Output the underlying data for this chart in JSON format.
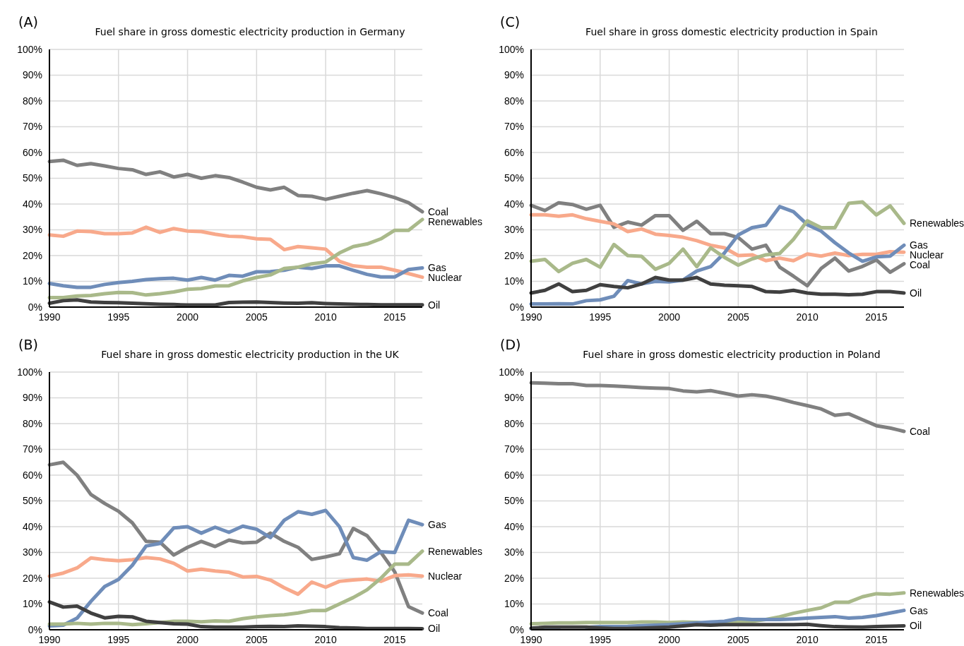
{
  "chart_data": [
    {
      "type": "line",
      "title": "Fuel share in gross domestic electricity production in Germany",
      "annotations": [
        "(A)"
      ],
      "x": [
        1990,
        1991,
        1992,
        1993,
        1994,
        1995,
        1996,
        1997,
        1998,
        1999,
        2000,
        2001,
        2002,
        2003,
        2004,
        2005,
        2006,
        2007,
        2008,
        2009,
        2010,
        2011,
        2012,
        2013,
        2014,
        2015,
        2016,
        2017
      ],
      "xlim": [
        1990,
        2017
      ],
      "xticks": [
        1990,
        1995,
        2000,
        2005,
        2010,
        2015
      ],
      "ylim": [
        0,
        100
      ],
      "yticks": [
        {
          "value": 0,
          "label": "0%"
        },
        {
          "value": 10,
          "label": "10%"
        },
        {
          "value": 20,
          "label": "20%"
        },
        {
          "value": 30,
          "label": "30%"
        },
        {
          "value": 40,
          "label": "40%"
        },
        {
          "value": 50,
          "label": "50%"
        },
        {
          "value": 60,
          "label": "60%"
        },
        {
          "value": 70,
          "label": "70%"
        },
        {
          "value": 80,
          "label": "80%"
        },
        {
          "value": 90,
          "label": "90%"
        },
        {
          "value": 100,
          "label": "100%"
        }
      ],
      "grid": true,
      "series": [
        {
          "name": "Coal",
          "color": "#808080",
          "values": [
            56.5,
            57,
            55,
            55.7,
            54.8,
            53.8,
            53.3,
            51.5,
            52.5,
            50.5,
            51.5,
            50,
            51,
            50.3,
            48.5,
            46.5,
            45.5,
            46.5,
            43.3,
            43,
            41.8,
            43,
            44.2,
            45.2,
            44,
            42.5,
            40.5,
            37
          ]
        },
        {
          "name": "Nuclear",
          "color": "#f8a98b",
          "values": [
            28,
            27.5,
            29.5,
            29.3,
            28.5,
            28.5,
            28.8,
            31,
            29,
            30.5,
            29.5,
            29.3,
            28.3,
            27.5,
            27.3,
            26.5,
            26.3,
            22.3,
            23.5,
            23,
            22.5,
            17.8,
            16,
            15.5,
            15.5,
            14.3,
            13,
            11.6
          ]
        },
        {
          "name": "Gas",
          "color": "#6f8db9",
          "values": [
            9.2,
            8.3,
            7.7,
            7.7,
            8.8,
            9.5,
            10,
            10.7,
            11,
            11.2,
            10.5,
            11.5,
            10.5,
            12.3,
            12,
            13.7,
            13.8,
            14.3,
            15.5,
            15,
            16,
            16,
            14.3,
            12.7,
            11.7,
            11.7,
            14.6,
            15.2
          ]
        },
        {
          "name": "Renewables",
          "color": "#a9b98a",
          "values": [
            3.7,
            3.7,
            4.3,
            4.5,
            5.2,
            5.7,
            5.6,
            4.7,
            5.2,
            5.9,
            6.9,
            7.2,
            8.2,
            8.3,
            10.2,
            11.5,
            12.5,
            15,
            15.5,
            16.8,
            17.5,
            21,
            23.5,
            24.5,
            26.5,
            29.8,
            29.8,
            34
          ]
        },
        {
          "name": "Oil",
          "color": "#404040",
          "values": [
            1.5,
            2.5,
            2.8,
            2,
            1.8,
            1.7,
            1.5,
            1.3,
            1.1,
            1,
            0.8,
            0.8,
            0.8,
            1.8,
            1.9,
            2,
            1.8,
            1.6,
            1.5,
            1.7,
            1.4,
            1.2,
            1.1,
            1,
            0.9,
            0.9,
            0.9,
            0.9
          ]
        }
      ]
    },
    {
      "type": "line",
      "title": "Fuel share in gross domestic electricity production in Spain",
      "annotations": [
        "(C)"
      ],
      "x": [
        1990,
        1991,
        1992,
        1993,
        1994,
        1995,
        1996,
        1997,
        1998,
        1999,
        2000,
        2001,
        2002,
        2003,
        2004,
        2005,
        2006,
        2007,
        2008,
        2009,
        2010,
        2011,
        2012,
        2013,
        2014,
        2015,
        2016,
        2017
      ],
      "xlim": [
        1990,
        2017
      ],
      "xticks": [
        1990,
        1995,
        2000,
        2005,
        2010,
        2015
      ],
      "ylim": [
        0,
        100
      ],
      "yticks": [
        {
          "value": 0,
          "label": "0%"
        },
        {
          "value": 10,
          "label": "10%"
        },
        {
          "value": 20,
          "label": "20%"
        },
        {
          "value": 30,
          "label": "30%"
        },
        {
          "value": 40,
          "label": "40%"
        },
        {
          "value": 50,
          "label": "50%"
        },
        {
          "value": 60,
          "label": "60%"
        },
        {
          "value": 70,
          "label": "70%"
        },
        {
          "value": 80,
          "label": "80%"
        },
        {
          "value": 90,
          "label": "90%"
        },
        {
          "value": 100,
          "label": "100%"
        }
      ],
      "grid": true,
      "series": [
        {
          "name": "Coal",
          "color": "#808080",
          "values": [
            39.5,
            37.5,
            40.5,
            39.8,
            38,
            39.5,
            31,
            33,
            31.8,
            35.5,
            35.5,
            29.8,
            33.3,
            28.5,
            28.5,
            27,
            22.5,
            24,
            15.5,
            12,
            8.3,
            15,
            19,
            14,
            15.8,
            18.3,
            13.5,
            16.8
          ]
        },
        {
          "name": "Nuclear",
          "color": "#f8a98b",
          "values": [
            35.8,
            35.8,
            35.3,
            35.8,
            34.3,
            33.3,
            32.3,
            29.3,
            30.3,
            28.3,
            27.8,
            27.1,
            25.8,
            24,
            23,
            20,
            20.3,
            18,
            19,
            18,
            20.6,
            19.8,
            21,
            20,
            20.5,
            20.5,
            21.5,
            21.3
          ]
        },
        {
          "name": "Gas",
          "color": "#6f8db9",
          "values": [
            1.2,
            1.2,
            1.3,
            1.2,
            2.5,
            2.8,
            4.2,
            10.3,
            9,
            10,
            9.8,
            10.5,
            14,
            15.7,
            21,
            28,
            30.8,
            31.8,
            39,
            37,
            32,
            29.5,
            25,
            21,
            17.8,
            19.5,
            19.8,
            24
          ]
        },
        {
          "name": "Renewables",
          "color": "#a9b98a",
          "values": [
            17.8,
            18.5,
            13.8,
            17,
            18.5,
            15.5,
            24.3,
            20,
            19.7,
            14.7,
            17,
            22.5,
            15.7,
            23,
            19.3,
            16.3,
            18.7,
            20.3,
            20.8,
            26.3,
            33.5,
            30.8,
            30.8,
            40.3,
            40.8,
            35.8,
            39.3,
            32.5
          ]
        },
        {
          "name": "Oil",
          "color": "#404040",
          "values": [
            5.5,
            6.5,
            9,
            6,
            6.5,
            8.7,
            8,
            7.5,
            9,
            11.5,
            10.5,
            10.5,
            11.5,
            9,
            8.5,
            8.3,
            8,
            6,
            5.8,
            6.5,
            5.5,
            5,
            5,
            4.8,
            5,
            6,
            6,
            5.5
          ]
        }
      ]
    },
    {
      "type": "line",
      "title": "Fuel share in gross domestic electricity production in the UK",
      "annotations": [
        "(B)"
      ],
      "x": [
        1990,
        1991,
        1992,
        1993,
        1994,
        1995,
        1996,
        1997,
        1998,
        1999,
        2000,
        2001,
        2002,
        2003,
        2004,
        2005,
        2006,
        2007,
        2008,
        2009,
        2010,
        2011,
        2012,
        2013,
        2014,
        2015,
        2016,
        2017
      ],
      "xlim": [
        1990,
        2017
      ],
      "xticks": [
        1990,
        1995,
        2000,
        2005,
        2010,
        2015
      ],
      "ylim": [
        0,
        100
      ],
      "yticks": [
        {
          "value": 0,
          "label": "0%"
        },
        {
          "value": 10,
          "label": "10%"
        },
        {
          "value": 20,
          "label": "20%"
        },
        {
          "value": 30,
          "label": "30%"
        },
        {
          "value": 40,
          "label": "40%"
        },
        {
          "value": 50,
          "label": "50%"
        },
        {
          "value": 60,
          "label": "60%"
        },
        {
          "value": 70,
          "label": "70%"
        },
        {
          "value": 80,
          "label": "80%"
        },
        {
          "value": 90,
          "label": "90%"
        },
        {
          "value": 100,
          "label": "100%"
        }
      ],
      "grid": true,
      "series": [
        {
          "name": "Coal",
          "color": "#808080",
          "values": [
            64,
            65,
            60,
            52.5,
            49,
            46,
            41.5,
            34.3,
            34,
            29,
            32,
            34.3,
            32.3,
            34.8,
            33.7,
            34,
            37.5,
            34.3,
            32,
            27.3,
            28.3,
            29.5,
            39.3,
            36.5,
            30,
            22.5,
            9,
            6.5
          ]
        },
        {
          "name": "Nuclear",
          "color": "#f8a98b",
          "values": [
            20.8,
            22,
            24,
            27.9,
            27.2,
            26.8,
            27.2,
            28,
            27.5,
            25.8,
            22.8,
            23.5,
            22.8,
            22.3,
            20.5,
            20.7,
            19.3,
            16.3,
            13.8,
            18.5,
            16.5,
            18.8,
            19.3,
            19.7,
            18.8,
            21,
            21.3,
            20.8
          ]
        },
        {
          "name": "Gas",
          "color": "#6f8db9",
          "values": [
            1.5,
            1.8,
            4.5,
            11,
            16.8,
            19.5,
            25,
            32.5,
            33.5,
            39.5,
            40,
            37.5,
            39.8,
            37.8,
            40.2,
            39,
            35.8,
            42.5,
            45.8,
            44.8,
            46.3,
            40,
            28,
            27,
            30.3,
            30,
            42.5,
            40.8
          ]
        },
        {
          "name": "Renewables",
          "color": "#a9b98a",
          "values": [
            2.2,
            2.2,
            2.5,
            2.2,
            2.5,
            2.5,
            2,
            2.3,
            2.8,
            3.3,
            3.3,
            3.1,
            3.4,
            3.3,
            4.3,
            5,
            5.5,
            5.8,
            6.5,
            7.5,
            7.5,
            10,
            12.5,
            15.5,
            20,
            25.5,
            25.5,
            30.5
          ]
        },
        {
          "name": "Oil",
          "color": "#404040",
          "values": [
            10.8,
            8.8,
            9.2,
            6.5,
            4.6,
            5.2,
            5,
            3.3,
            2.8,
            2.3,
            2.2,
            1.2,
            1,
            1,
            1,
            1.2,
            1.3,
            1.2,
            1.5,
            1.4,
            1.2,
            0.8,
            0.7,
            0.5,
            0.5,
            0.5,
            0.5,
            0.4
          ]
        }
      ]
    },
    {
      "type": "line",
      "title": "Fuel share in gross domestic electricity production in Poland",
      "annotations": [
        "(D)"
      ],
      "x": [
        1990,
        1991,
        1992,
        1993,
        1994,
        1995,
        1996,
        1997,
        1998,
        1999,
        2000,
        2001,
        2002,
        2003,
        2004,
        2005,
        2006,
        2007,
        2008,
        2009,
        2010,
        2011,
        2012,
        2013,
        2014,
        2015,
        2016,
        2017
      ],
      "xlim": [
        1990,
        2017
      ],
      "xticks": [
        1990,
        1995,
        2000,
        2005,
        2010,
        2015
      ],
      "ylim": [
        0,
        100
      ],
      "yticks": [
        {
          "value": 0,
          "label": "0%"
        },
        {
          "value": 10,
          "label": "10%"
        },
        {
          "value": 20,
          "label": "20%"
        },
        {
          "value": 30,
          "label": "30%"
        },
        {
          "value": 40,
          "label": "40%"
        },
        {
          "value": 50,
          "label": "50%"
        },
        {
          "value": 60,
          "label": "60%"
        },
        {
          "value": 70,
          "label": "70%"
        },
        {
          "value": 80,
          "label": "80%"
        },
        {
          "value": 90,
          "label": "90%"
        },
        {
          "value": 100,
          "label": "100%"
        }
      ],
      "grid": true,
      "series": [
        {
          "name": "Coal",
          "color": "#808080",
          "values": [
            95.8,
            95.7,
            95.5,
            95.5,
            94.8,
            94.8,
            94.6,
            94.3,
            94,
            93.8,
            93.6,
            92.7,
            92.3,
            92.8,
            91.8,
            90.7,
            91.2,
            90.7,
            89.6,
            88.2,
            87,
            85.7,
            83.2,
            83.8,
            81.5,
            79.2,
            78.3,
            77
          ]
        },
        {
          "name": "Renewables",
          "color": "#a9b98a",
          "values": [
            2.3,
            2.5,
            2.7,
            2.7,
            2.8,
            2.8,
            2.8,
            2.8,
            3,
            3,
            2.8,
            3,
            2.9,
            2.2,
            2.9,
            3.2,
            3.3,
            4,
            5,
            6.4,
            7.5,
            8.5,
            10.7,
            10.7,
            12.8,
            14,
            13.8,
            14.3
          ]
        },
        {
          "name": "Gas",
          "color": "#6f8db9",
          "values": [
            0.5,
            0.5,
            0.5,
            null,
            0.9,
            1.2,
            1.2,
            1.3,
            1.6,
            1.8,
            2,
            2.3,
            2.7,
            3,
            3.3,
            4.3,
            4,
            4,
            4,
            4.2,
            4.5,
            4.8,
            5.1,
            4.5,
            4.8,
            5.5,
            6.5,
            7.5
          ]
        },
        {
          "name": "Oil",
          "color": "#404040",
          "values": [
            0.6,
            1,
            1,
            1,
            1,
            0.7,
            0.5,
            0.5,
            0.6,
            0.8,
            1,
            1.5,
            2,
            1.8,
            2,
            2,
            2,
            2,
            2,
            2,
            2.1,
            1.6,
            1.2,
            1.1,
            1,
            1.2,
            1.4,
            1.5
          ]
        }
      ]
    }
  ]
}
